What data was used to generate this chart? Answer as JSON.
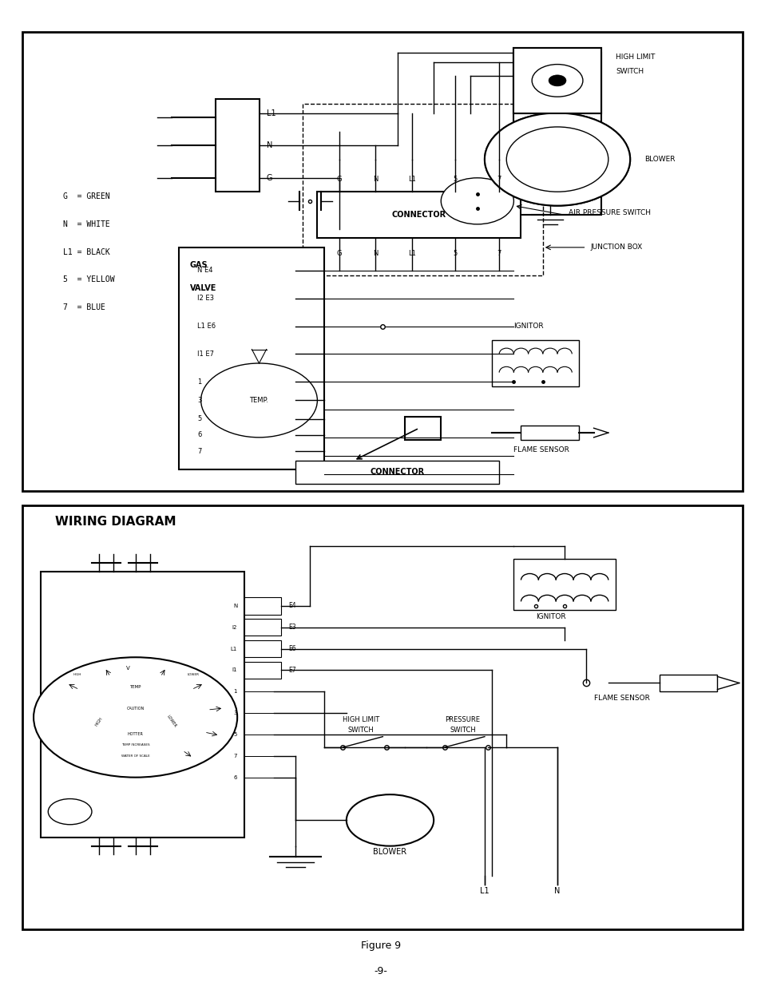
{
  "title": "Figure 9",
  "page_number": "-9-",
  "background": "#ffffff",
  "line_color": "#000000",
  "fig_width": 9.54,
  "fig_height": 12.35,
  "wiring_diagram_title": "WIRING DIAGRAM"
}
